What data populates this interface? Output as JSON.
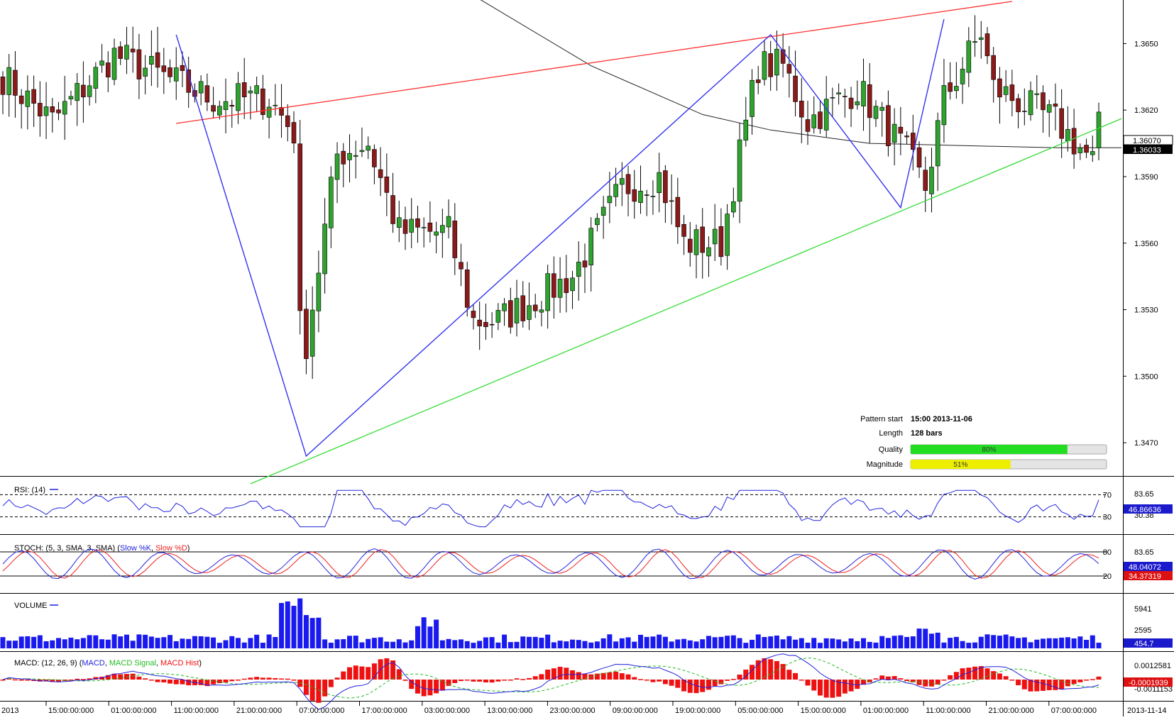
{
  "chart_data": {
    "type": "candlestick",
    "instrument_timeframe": "1h",
    "price_axis": {
      "ticks": [
        1.365,
        1.362,
        1.359,
        1.356,
        1.353,
        1.35,
        1.347
      ],
      "tick_labels": [
        "1.3650",
        "1.3620",
        "1.3590",
        "1.3560",
        "1.3530",
        "1.3500",
        "1.3470"
      ],
      "range": [
        1.3455,
        1.3669
      ],
      "current_price_label": "1.36070",
      "ma_price_label": "1.36033"
    },
    "x_axis": {
      "tick_labels": [
        "2013",
        "15:00:00:000",
        "01:00:00:000",
        "11:00:00:000",
        "21:00:00:000",
        "07:00:00:000",
        "17:00:00:000",
        "03:00:00:000",
        "13:00:00:000",
        "23:00:00:000",
        "09:00:00:000",
        "19:00:00:000",
        "05:00:00:000",
        "15:00:00:000",
        "01:00:00:000",
        "11:00:00:000",
        "21:00:00:000",
        "07:00:00:000",
        "2013-11-14"
      ]
    },
    "anchors": [
      {
        "bar": 0,
        "price": 1.3635
      },
      {
        "bar": 8,
        "price": 1.3615
      },
      {
        "bar": 18,
        "price": 1.3645
      },
      {
        "bar": 26,
        "price": 1.3635
      },
      {
        "bar": 34,
        "price": 1.3625
      },
      {
        "bar": 43,
        "price": 1.3625
      },
      {
        "bar": 47,
        "price": 1.361
      },
      {
        "bar": 48,
        "price": 1.3523
      },
      {
        "bar": 49,
        "price": 1.3515
      },
      {
        "bar": 54,
        "price": 1.36
      },
      {
        "bar": 59,
        "price": 1.3605
      },
      {
        "bar": 64,
        "price": 1.3565
      },
      {
        "bar": 72,
        "price": 1.3565
      },
      {
        "bar": 76,
        "price": 1.3525
      },
      {
        "bar": 80,
        "price": 1.3525
      },
      {
        "bar": 92,
        "price": 1.3545
      },
      {
        "bar": 100,
        "price": 1.3585
      },
      {
        "bar": 106,
        "price": 1.359
      },
      {
        "bar": 110,
        "price": 1.356
      },
      {
        "bar": 116,
        "price": 1.356
      },
      {
        "bar": 122,
        "price": 1.364
      },
      {
        "bar": 126,
        "price": 1.364
      },
      {
        "bar": 130,
        "price": 1.3615
      },
      {
        "bar": 138,
        "price": 1.363
      },
      {
        "bar": 146,
        "price": 1.36
      },
      {
        "bar": 149,
        "price": 1.3585
      },
      {
        "bar": 152,
        "price": 1.3625
      },
      {
        "bar": 158,
        "price": 1.3655
      },
      {
        "bar": 160,
        "price": 1.363
      },
      {
        "bar": 170,
        "price": 1.3615
      },
      {
        "bar": 176,
        "price": 1.3597
      },
      {
        "bar": 177,
        "price": 1.3612
      }
    ],
    "bars": 178,
    "pattern_lines": {
      "resistance": [
        {
          "bar": 28,
          "price": 1.3614
        },
        {
          "bar": 163,
          "price": 1.3669
        }
      ],
      "support": [
        {
          "bar": 43,
          "price": 1.3455
        },
        {
          "bar": 172,
          "price": 1.3606
        }
      ],
      "zigzag": [
        {
          "bar": 28,
          "price": 1.3654
        },
        {
          "bar": 49,
          "price": 1.3464
        },
        {
          "bar": 124,
          "price": 1.3654
        },
        {
          "bar": 145,
          "price": 1.3576
        },
        {
          "bar": 152,
          "price": 1.3661
        }
      ],
      "moving_average": [
        {
          "bar": 74,
          "price": 1.3675
        },
        {
          "bar": 95,
          "price": 1.364
        },
        {
          "bar": 113,
          "price": 1.3618
        },
        {
          "bar": 124,
          "price": 1.3611
        },
        {
          "bar": 140,
          "price": 1.3605
        },
        {
          "bar": 170,
          "price": 1.3603
        }
      ]
    },
    "pattern_info": {
      "pattern_start_label": "Pattern start",
      "pattern_start_value": "15:00 2013-11-06",
      "length_label": "Length",
      "length_value": "128 bars",
      "quality_label": "Quality",
      "quality_value": 80,
      "quality_text": "80%",
      "magnitude_label": "Magnitude",
      "magnitude_value": 51,
      "magnitude_text": "51%"
    },
    "rsi": {
      "label": "RSI: (14)",
      "level_high": "70",
      "level_low": "30",
      "scale_top": "83.65",
      "scale_bottom": "30.38",
      "value_label": "46.86636"
    },
    "stoch": {
      "label_prefix": "STOCH: (5, 3, SMA, 3, SMA) (",
      "k_label": "Slow %K",
      "sep": ", ",
      "d_label": "Slow %D",
      "label_suffix": ")",
      "level_high": "80",
      "level_low": "20",
      "scale_top": "83.65",
      "k_value_label": "48.04072",
      "d_value_label": "34.37319"
    },
    "volume": {
      "label": "VOLUME",
      "ticks": [
        "5941",
        "2595"
      ],
      "value_label": "454.7"
    },
    "macd": {
      "label_prefix": "MACD: (12, 26, 9) (",
      "macd_label": "MACD",
      "sep": ", ",
      "signal_label": "MACD Signal",
      "hist_label": "MACD Hist",
      "label_suffix": ")",
      "scale_top": "0.0012581",
      "scale_bottom": "-0.0011153",
      "value_label": "-0.0001939"
    },
    "colors": {
      "bull": "#2ea32e",
      "bear": "#8b1a1a",
      "resistance": "#ff3030",
      "support": "#33dd33",
      "zigzag": "#3333ee",
      "ma": "#222222",
      "rsi": "#2222dd",
      "stoch_k": "#2222dd",
      "stoch_d": "#ee2222",
      "volume": "#1a1aee",
      "macd": "#2222dd",
      "signal": "#22bb22",
      "hist": "#ee1111"
    }
  }
}
